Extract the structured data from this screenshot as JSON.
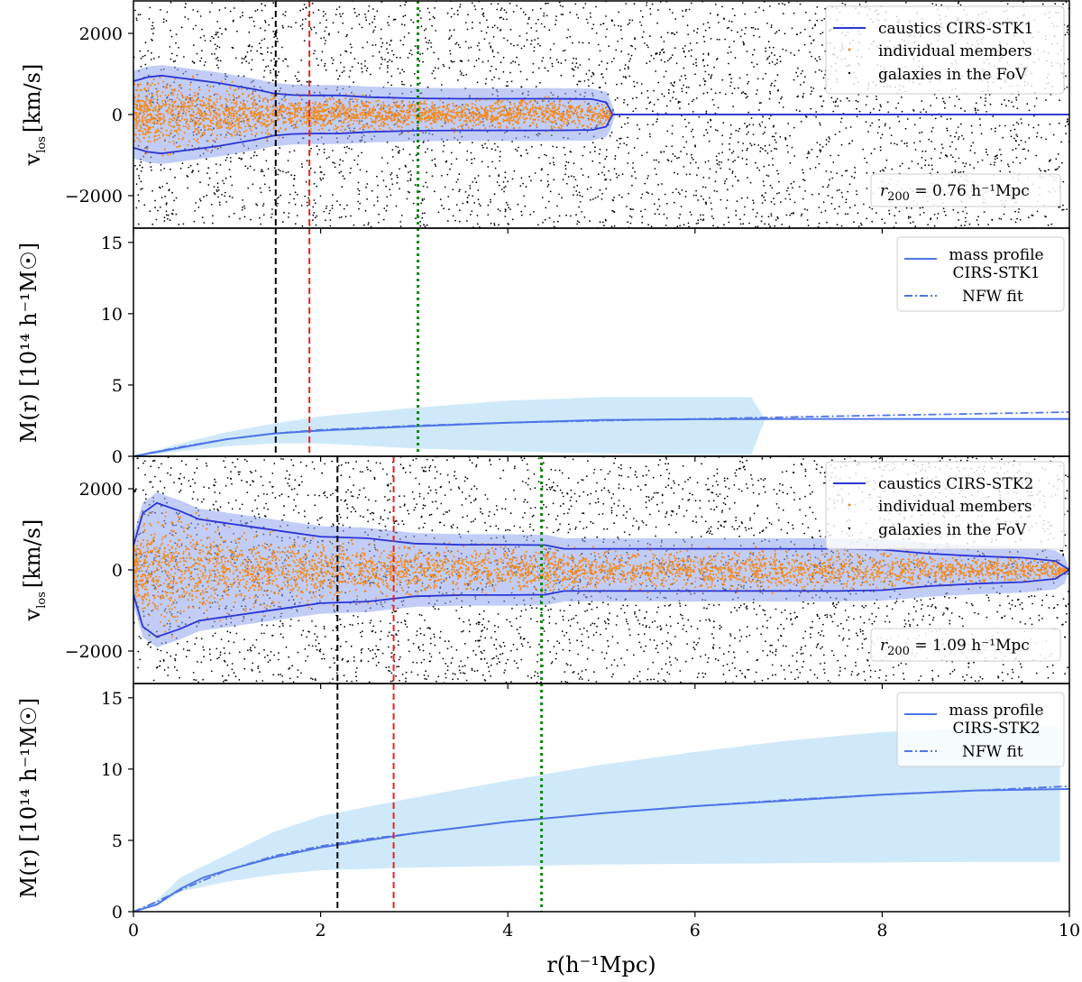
{
  "chart_data": [
    {
      "type": "scatter",
      "panel": "caustics-1",
      "ylabel_main": "v",
      "ylabel_sub": "los",
      "ylabel_unit": "[km/s]",
      "xlim": [
        0,
        10
      ],
      "ylim": [
        -2800,
        2800
      ],
      "yticks": [
        -2000,
        0,
        2000
      ],
      "ytick_labels": [
        "−2000",
        "0",
        "2000"
      ],
      "vlines": [
        1.52,
        1.88,
        3.04
      ],
      "caustic_amplitude": [
        [
          0.0,
          820
        ],
        [
          0.15,
          920
        ],
        [
          0.3,
          960
        ],
        [
          0.5,
          900
        ],
        [
          0.7,
          840
        ],
        [
          0.9,
          780
        ],
        [
          1.1,
          700
        ],
        [
          1.3,
          620
        ],
        [
          1.5,
          520
        ],
        [
          1.7,
          480
        ],
        [
          1.9,
          470
        ],
        [
          2.2,
          470
        ],
        [
          2.5,
          430
        ],
        [
          3.0,
          400
        ],
        [
          3.5,
          390
        ],
        [
          4.0,
          390
        ],
        [
          4.5,
          390
        ],
        [
          4.9,
          380
        ],
        [
          5.05,
          300
        ],
        [
          5.12,
          0
        ],
        [
          10.0,
          0
        ]
      ],
      "members_extent_r": 5.1,
      "legend": [
        "caustics CIRS-STK1",
        "individual members",
        "galaxies in the FoV"
      ],
      "legend_position": "upper right",
      "r200_prefix": "r",
      "r200_sub": "200",
      "r200_text": " = 0.76 h⁻¹Mpc",
      "colors": {
        "caustic": "#2b35d6",
        "band": "#8ea4ef",
        "members": "#f28a1e",
        "field": "#000000"
      }
    },
    {
      "type": "line",
      "panel": "mass-1",
      "ylabel": "M(r) [10¹⁴ h⁻¹M☉]",
      "xlim": [
        0,
        10
      ],
      "ylim": [
        0,
        16
      ],
      "yticks": [
        0,
        5,
        10,
        15
      ],
      "ytick_labels": [
        "0",
        "5",
        "10",
        "15"
      ],
      "vlines": [
        1.52,
        1.88,
        3.04
      ],
      "series": [
        {
          "name": "mass profile",
          "x": [
            0,
            0.5,
            1,
            1.5,
            2,
            3,
            4,
            5,
            6,
            7,
            8,
            9,
            10
          ],
          "y": [
            0,
            0.6,
            1.2,
            1.6,
            1.8,
            2.1,
            2.35,
            2.55,
            2.6,
            2.62,
            2.62,
            2.62,
            2.62
          ]
        },
        {
          "name": "NFW fit",
          "x": [
            0,
            0.5,
            1,
            1.5,
            2,
            3,
            4,
            5,
            6,
            7,
            8,
            9,
            10
          ],
          "y": [
            0,
            0.65,
            1.2,
            1.6,
            1.85,
            2.15,
            2.35,
            2.5,
            2.62,
            2.75,
            2.87,
            2.98,
            3.1
          ]
        }
      ],
      "band": {
        "x": [
          0,
          0.5,
          1,
          1.5,
          2,
          3,
          4,
          5,
          6,
          6.6,
          6.75
        ],
        "upper": [
          0,
          0.9,
          1.7,
          2.3,
          2.8,
          3.4,
          3.9,
          4.15,
          4.15,
          4.15,
          2.6
        ],
        "lower": [
          0,
          0.35,
          0.7,
          0.9,
          0.9,
          0.55,
          0.35,
          0.2,
          0.1,
          0.1,
          2.6
        ]
      },
      "legend": [
        "mass profile",
        "CIRS-STK1",
        "NFW fit"
      ],
      "legend_position": "upper right",
      "colors": {
        "line": "#4f75e6",
        "band": "#cfe9fa"
      }
    },
    {
      "type": "scatter",
      "panel": "caustics-2",
      "ylabel_main": "v",
      "ylabel_sub": "los",
      "ylabel_unit": "[km/s]",
      "xlim": [
        0,
        10
      ],
      "ylim": [
        -2800,
        2800
      ],
      "yticks": [
        -2000,
        0,
        2000
      ],
      "ytick_labels": [
        "−2000",
        "0",
        "2000"
      ],
      "vlines": [
        2.18,
        2.78,
        4.36
      ],
      "caustic_amplitude": [
        [
          0.0,
          600
        ],
        [
          0.1,
          1400
        ],
        [
          0.25,
          1650
        ],
        [
          0.5,
          1450
        ],
        [
          0.7,
          1250
        ],
        [
          1.0,
          1150
        ],
        [
          1.3,
          1050
        ],
        [
          1.6,
          950
        ],
        [
          2.0,
          820
        ],
        [
          2.5,
          780
        ],
        [
          3.0,
          650
        ],
        [
          3.5,
          620
        ],
        [
          4.0,
          620
        ],
        [
          4.4,
          610
        ],
        [
          4.6,
          520
        ],
        [
          5.5,
          520
        ],
        [
          6.5,
          520
        ],
        [
          7.5,
          520
        ],
        [
          8.0,
          500
        ],
        [
          8.5,
          400
        ],
        [
          9.0,
          340
        ],
        [
          9.5,
          300
        ],
        [
          9.85,
          220
        ],
        [
          10.0,
          0
        ]
      ],
      "members_extent_r": 10.0,
      "legend": [
        "caustics CIRS-STK2",
        "individual members",
        "galaxies in the FoV"
      ],
      "legend_position": "upper right",
      "r200_prefix": "r",
      "r200_sub": "200",
      "r200_text": " = 1.09 h⁻¹Mpc",
      "colors": {
        "caustic": "#2b35d6",
        "band": "#8ea4ef",
        "members": "#f28a1e",
        "field": "#000000"
      }
    },
    {
      "type": "line",
      "panel": "mass-2",
      "ylabel": "M(r) [10¹⁴ h⁻¹M☉]",
      "xlabel": "r(h⁻¹Mpc)",
      "xlim": [
        0,
        10
      ],
      "ylim": [
        0,
        16
      ],
      "xticks": [
        0,
        2,
        4,
        6,
        8,
        10
      ],
      "xtick_labels": [
        "0",
        "2",
        "4",
        "6",
        "8",
        "10"
      ],
      "yticks": [
        0,
        5,
        10,
        15
      ],
      "ytick_labels": [
        "0",
        "5",
        "10",
        "15"
      ],
      "vlines": [
        2.18,
        2.78,
        4.36
      ],
      "series": [
        {
          "name": "mass profile",
          "x": [
            0,
            0.25,
            0.5,
            0.75,
            1,
            1.5,
            2,
            2.5,
            3,
            4,
            5,
            6,
            7,
            8,
            9,
            10
          ],
          "y": [
            0,
            0.5,
            1.6,
            2.4,
            2.9,
            3.8,
            4.5,
            5.0,
            5.5,
            6.3,
            6.9,
            7.4,
            7.8,
            8.2,
            8.5,
            8.6
          ]
        },
        {
          "name": "NFW fit",
          "x": [
            0,
            0.25,
            0.5,
            0.75,
            1,
            1.5,
            2,
            2.5,
            3,
            4,
            5,
            6,
            7,
            8,
            9,
            10
          ],
          "y": [
            0,
            0.7,
            1.5,
            2.2,
            2.9,
            3.9,
            4.6,
            5.1,
            5.5,
            6.3,
            6.9,
            7.4,
            7.85,
            8.2,
            8.5,
            8.8
          ]
        }
      ],
      "band": {
        "x": [
          0,
          0.25,
          0.5,
          1,
          1.5,
          2,
          3,
          4,
          5,
          6,
          7,
          8,
          9,
          9.7,
          9.9
        ],
        "upper": [
          0,
          0.8,
          2.4,
          4.0,
          5.6,
          6.7,
          8.0,
          9.2,
          10.3,
          11.2,
          12.0,
          12.6,
          12.9,
          13.0,
          13.0
        ],
        "lower": [
          0,
          0.4,
          1.4,
          2.1,
          2.6,
          2.9,
          3.1,
          3.2,
          3.3,
          3.35,
          3.4,
          3.45,
          3.5,
          3.5,
          3.5
        ]
      },
      "legend": [
        "mass profile",
        "CIRS-STK2",
        "NFW fit"
      ],
      "legend_position": "upper right",
      "colors": {
        "line": "#4f75e6",
        "band": "#cfe9fa"
      }
    }
  ],
  "vline_colors": [
    "#000000",
    "#e8251b",
    "#0f8a0f"
  ]
}
